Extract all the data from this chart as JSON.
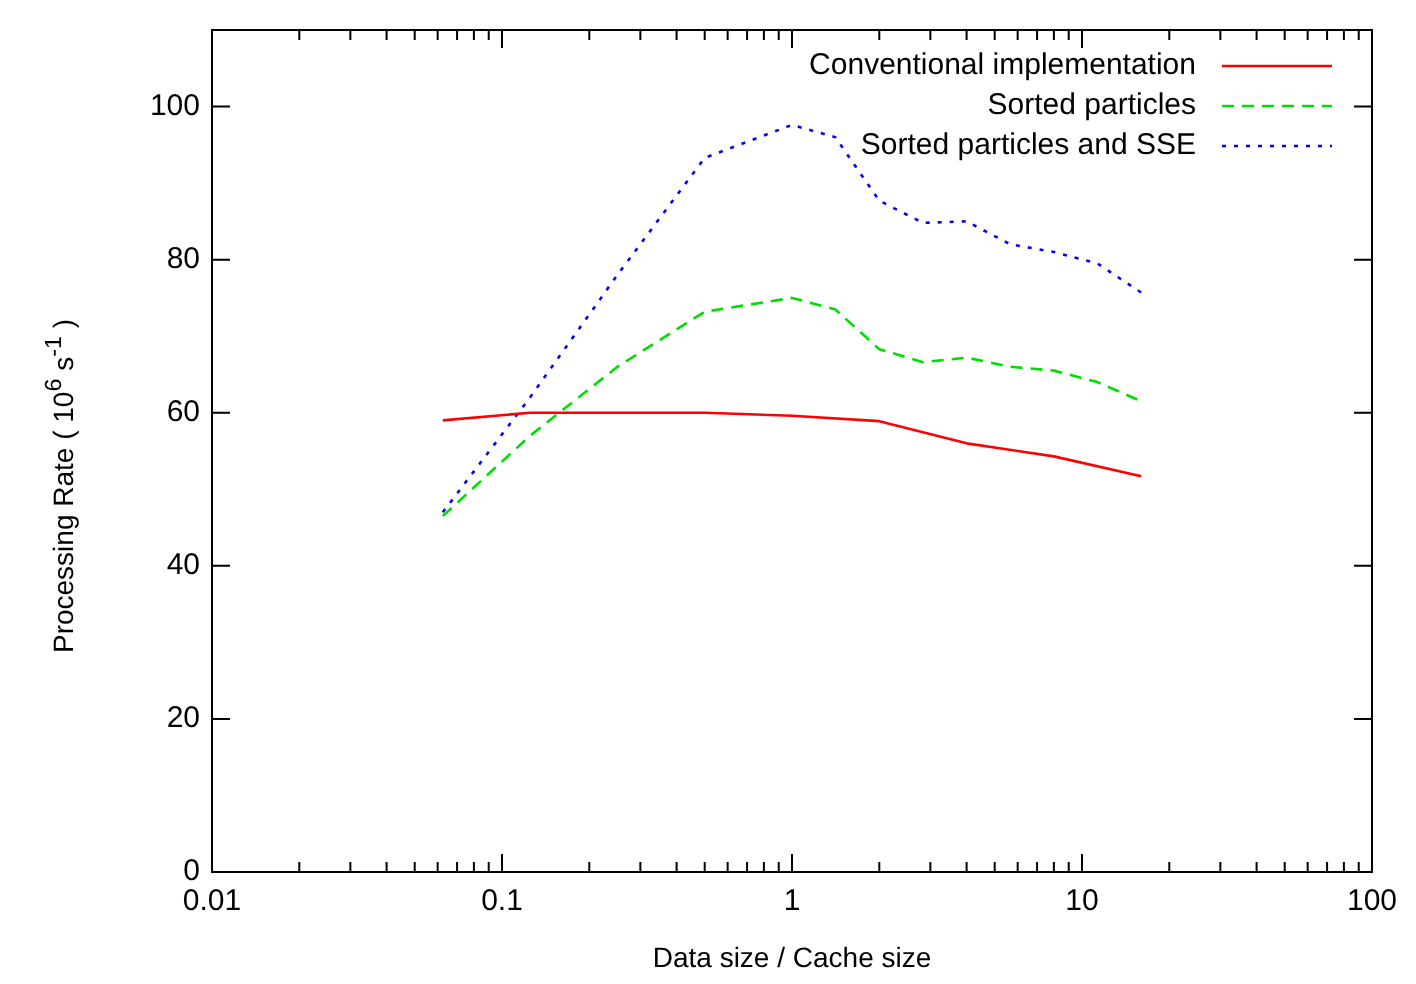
{
  "chart_data": {
    "type": "line",
    "xlabel": "Data size / Cache size",
    "ylabel": "Processing Rate ( 10$^{6}$ s$^{-1}$ )",
    "log": "x",
    "xlim": [
      0.01,
      100
    ],
    "xticks": [
      0.01,
      {
        "value": 0.02,
        "label": null
      },
      {
        "value": 0.03,
        "label": null
      },
      {
        "value": 0.04,
        "label": null
      },
      {
        "value": 0.05,
        "label": null
      },
      {
        "value": 0.06,
        "label": null
      },
      {
        "value": 0.07,
        "label": null
      },
      {
        "value": 0.08,
        "label": null
      },
      {
        "value": 0.09,
        "label": null
      },
      0.1,
      {
        "value": 0.2,
        "label": null
      },
      {
        "value": 0.3,
        "label": null
      },
      {
        "value": 0.4,
        "label": null
      },
      {
        "value": 0.5,
        "label": null
      },
      {
        "value": 0.6,
        "label": null
      },
      {
        "value": 0.7,
        "label": null
      },
      {
        "value": 0.8,
        "label": null
      },
      {
        "value": 0.9,
        "label": null
      },
      1,
      {
        "value": 2,
        "label": null
      },
      {
        "value": 3,
        "label": null
      },
      {
        "value": 4,
        "label": null
      },
      {
        "value": 5,
        "label": null
      },
      {
        "value": 6,
        "label": null
      },
      {
        "value": 7,
        "label": null
      },
      {
        "value": 8,
        "label": null
      },
      {
        "value": 9,
        "label": null
      },
      10,
      {
        "value": 20,
        "label": null
      },
      {
        "value": 30,
        "label": null
      },
      {
        "value": 40,
        "label": null
      },
      {
        "value": 50,
        "label": null
      },
      {
        "value": 60,
        "label": null
      },
      {
        "value": 70,
        "label": null
      },
      {
        "value": 80,
        "label": null
      },
      {
        "value": 90,
        "label": null
      },
      100
    ],
    "ylim": [
      0,
      110
    ],
    "yticks": [
      0,
      20,
      40,
      60,
      80,
      100
    ],
    "legend": "top right",
    "series": [
      {
        "name": "Conventional implementation",
        "color": "#ff0000",
        "line_style": "solid",
        "x": [
          0.0625,
          0.125,
          0.25,
          0.5,
          1,
          2,
          4,
          8,
          16
        ],
        "values": [
          59,
          60,
          60,
          60,
          59.6,
          58.9,
          56,
          54.3,
          51.7
        ]
      },
      {
        "name": "Sorted particles",
        "color": "#00dd00",
        "line_style": "dashed",
        "x": [
          0.0625,
          0.125,
          0.25,
          0.5,
          1,
          1.41,
          2,
          2.83,
          4,
          5.66,
          8,
          11.3,
          16
        ],
        "values": [
          46.5,
          57,
          66,
          73.2,
          75,
          73.5,
          68.3,
          66.6,
          67.2,
          66,
          65.5,
          64,
          61.5
        ]
      },
      {
        "name": "Sorted particles and SSE",
        "color": "#0000ff",
        "line_style": "dotted",
        "x": [
          0.0625,
          0.125,
          0.25,
          0.5,
          1,
          1.41,
          2,
          2.83,
          4,
          5.66,
          8,
          11.3,
          16
        ],
        "values": [
          47,
          62,
          78,
          93.3,
          97.6,
          96,
          87.7,
          84.8,
          85,
          82,
          81,
          79.5,
          75.7
        ]
      }
    ]
  }
}
